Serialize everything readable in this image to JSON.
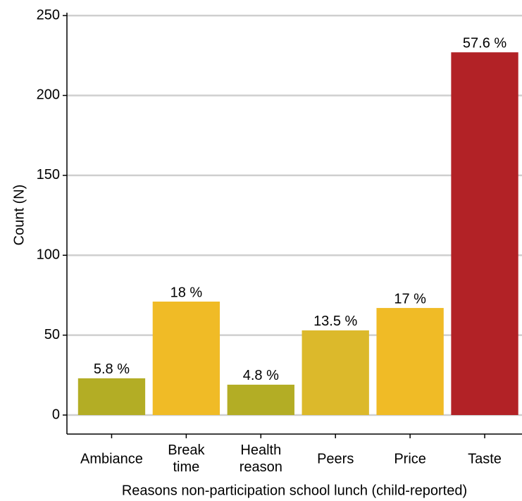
{
  "chart_data": {
    "type": "bar",
    "xlabel": "Reasons non-participation school lunch (child-reported)",
    "ylabel": "Count (N)",
    "categories": [
      "Ambiance",
      "Break time",
      "Health reason",
      "Peers",
      "Price",
      "Taste"
    ],
    "values": [
      23,
      71,
      19,
      53,
      67,
      227
    ],
    "percent_labels": [
      "5.8 %",
      "18 %",
      "4.8 %",
      "13.5 %",
      "17 %",
      "57.6 %"
    ],
    "colors": [
      "#b3ad25",
      "#f0bb26",
      "#b3ad25",
      "#dcb92b",
      "#f0bb26",
      "#b22226"
    ],
    "ylim": [
      -11.9,
      251.8
    ],
    "yticks": [
      0,
      50,
      100,
      150,
      200,
      250
    ],
    "grid": true
  }
}
